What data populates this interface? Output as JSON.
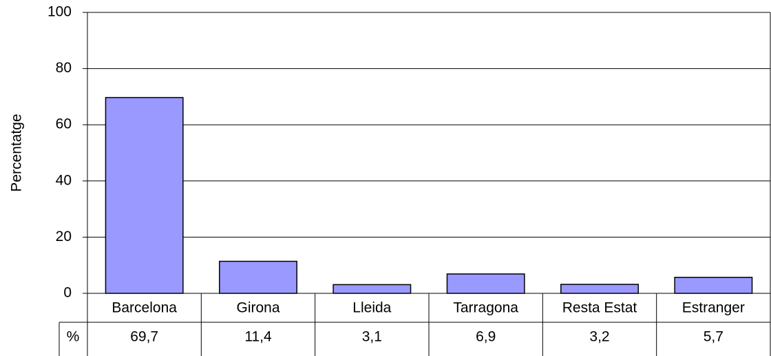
{
  "chart_data": {
    "type": "bar",
    "y_label": "Percentatge",
    "categories": [
      "Barcelona",
      "Girona",
      "Lleida",
      "Tarragona",
      "Resta Estat",
      "Estranger"
    ],
    "table_row_label": "%",
    "values": [
      69.7,
      11.4,
      3.1,
      6.9,
      3.2,
      5.7
    ],
    "value_labels": [
      "69,7",
      "11,4",
      "3,1",
      "6,9",
      "3,2",
      "5,7"
    ],
    "color": "#9999ff",
    "ylim": [
      0,
      100
    ],
    "yticks": [
      0,
      20,
      40,
      60,
      80,
      100
    ],
    "grid": true
  }
}
